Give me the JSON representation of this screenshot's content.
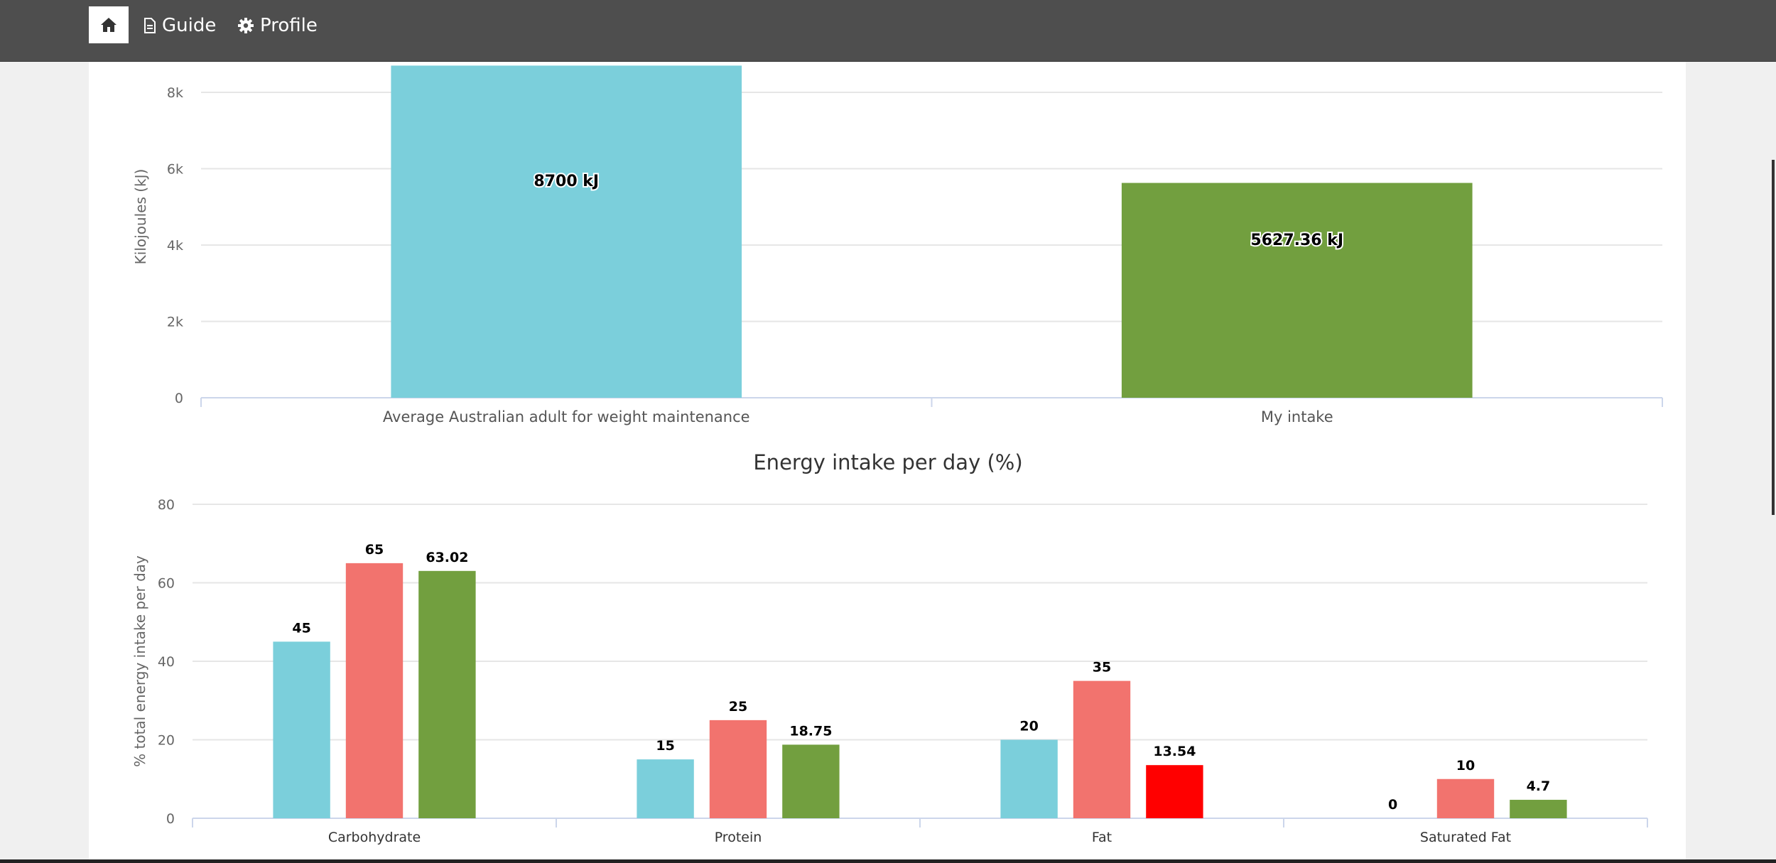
{
  "nav": {
    "home_icon": "home-icon",
    "guide_label": "Guide",
    "guide_icon": "document-icon",
    "profile_label": "Profile",
    "profile_icon": "gear-icon"
  },
  "chart_data": [
    {
      "type": "bar",
      "title": "",
      "xlabel": "",
      "ylabel": "Kilojoules (kJ)",
      "categories": [
        "Average Australian adult for weight maintenance",
        "My intake"
      ],
      "values": [
        8700,
        5627.36
      ],
      "value_labels": [
        "8700 kJ",
        "5627.36 kJ"
      ],
      "colors": [
        "#7bcfdb",
        "#729f3f"
      ],
      "yticks": [
        0,
        2000,
        4000,
        6000,
        8000
      ],
      "ytick_labels": [
        "0",
        "2k",
        "4k",
        "6k",
        "8k"
      ],
      "ylim": [
        0,
        8800
      ],
      "grid": true,
      "legend": "none"
    },
    {
      "type": "bar",
      "title": "Energy intake per day (%)",
      "xlabel": "",
      "ylabel": "% total energy intake per day",
      "categories": [
        "Carbohydrate",
        "Protein",
        "Fat",
        "Saturated Fat"
      ],
      "series": [
        {
          "values": [
            45,
            15,
            20,
            0
          ],
          "color": "#7bcfdb"
        },
        {
          "values": [
            65,
            25,
            35,
            10
          ],
          "color": "#f2736e"
        },
        {
          "values": [
            63.02,
            18.75,
            13.54,
            4.7
          ],
          "colors": [
            "#729f3f",
            "#729f3f",
            "#ff0000",
            "#729f3f"
          ]
        }
      ],
      "yticks": [
        0,
        20,
        40,
        60,
        80
      ],
      "ylim": [
        0,
        80
      ],
      "grid": true,
      "legend": "none"
    }
  ]
}
